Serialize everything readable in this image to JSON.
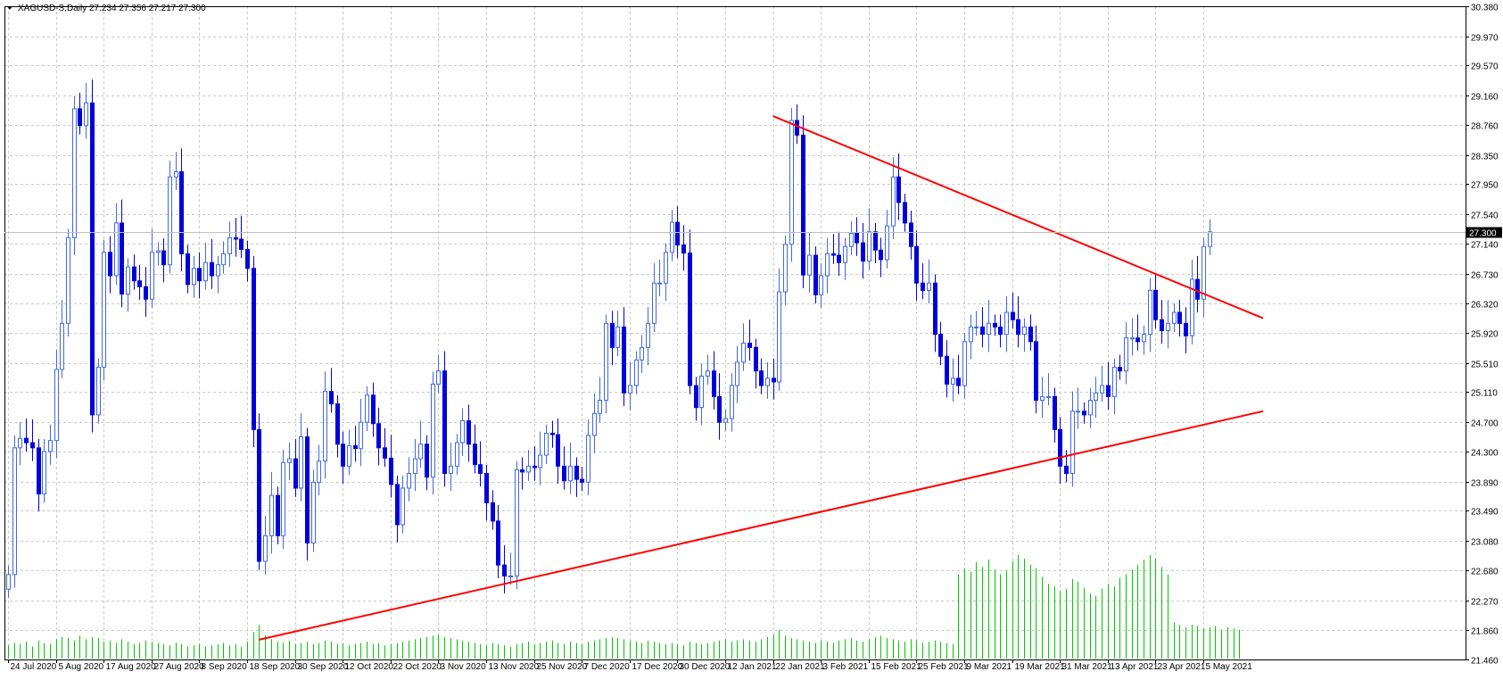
{
  "header": {
    "symbol": "XAGUSD-S,Daily",
    "ohlc": "27.234 27.356 27.217 27.300"
  },
  "colors": {
    "bull": "#4169e1",
    "bear": "#0000dd",
    "volume": "#00c800",
    "trendline": "#ff0000",
    "grid": "#c8c8c8",
    "axis": "#000000",
    "price_line": "#c0c0c0",
    "price_tag_bg": "#000000",
    "price_tag_text": "#ffffff"
  },
  "chart_data": {
    "type": "candlestick",
    "title": "",
    "xlabel": "",
    "ylabel": "",
    "ylim": [
      21.46,
      30.38
    ],
    "grid": true,
    "last_price": "27.300",
    "y_ticks": [
      "30.380",
      "29.970",
      "29.570",
      "29.160",
      "28.760",
      "28.350",
      "27.950",
      "27.540",
      "27.140",
      "26.730",
      "26.320",
      "25.920",
      "25.510",
      "25.110",
      "24.700",
      "24.300",
      "23.890",
      "23.490",
      "23.080",
      "22.680",
      "22.270",
      "21.860",
      "21.460"
    ],
    "x_ticks": [
      {
        "label": "24 Jul 2020",
        "index": 0
      },
      {
        "label": "5 Aug 2020",
        "index": 8
      },
      {
        "label": "17 Aug 2020",
        "index": 16
      },
      {
        "label": "27 Aug 2020",
        "index": 24
      },
      {
        "label": "8 Sep 2020",
        "index": 32
      },
      {
        "label": "18 Sep 2020",
        "index": 40
      },
      {
        "label": "30 Sep 2020",
        "index": 48
      },
      {
        "label": "12 Oct 2020",
        "index": 56
      },
      {
        "label": "22 Oct 2020",
        "index": 64
      },
      {
        "label": "3 Nov 2020",
        "index": 72
      },
      {
        "label": "13 Nov 2020",
        "index": 80
      },
      {
        "label": "25 Nov 2020",
        "index": 88
      },
      {
        "label": "7 Dec 2020",
        "index": 96
      },
      {
        "label": "17 Dec 2020",
        "index": 104
      },
      {
        "label": "30 Dec 2020",
        "index": 112
      },
      {
        "label": "12 Jan 2021",
        "index": 120
      },
      {
        "label": "22 Jan 2021",
        "index": 128
      },
      {
        "label": "3 Feb 2021",
        "index": 136
      },
      {
        "label": "15 Feb 2021",
        "index": 144
      },
      {
        "label": "25 Feb 2021",
        "index": 152
      },
      {
        "label": "9 Mar 2021",
        "index": 160
      },
      {
        "label": "19 Mar 2021",
        "index": 168
      },
      {
        "label": "31 Mar 2021",
        "index": 176
      },
      {
        "label": "13 Apr 2021",
        "index": 184
      },
      {
        "label": "23 Apr 2021",
        "index": 192
      },
      {
        "label": "5 May 2021",
        "index": 200
      }
    ],
    "trendlines": [
      {
        "name": "support",
        "from": {
          "index": 42,
          "price": 21.73
        },
        "to": {
          "index": 210,
          "price": 24.85
        }
      },
      {
        "name": "resistance",
        "from": {
          "index": 128,
          "price": 28.88
        },
        "to": {
          "index": 210,
          "price": 26.12
        }
      }
    ],
    "closes": [
      22.62,
      24.35,
      24.48,
      24.42,
      24.35,
      23.72,
      24.3,
      24.45,
      25.42,
      26.05,
      27.22,
      28.98,
      28.75,
      29.06,
      24.8,
      25.45,
      27.02,
      26.7,
      27.42,
      26.45,
      26.82,
      26.63,
      26.55,
      26.38,
      27.02,
      27.04,
      26.85,
      28.05,
      28.12,
      27.0,
      26.58,
      26.8,
      26.63,
      26.88,
      26.7,
      26.85,
      27.0,
      27.22,
      27.2,
      27.06,
      26.8,
      24.6,
      22.8,
      23.15,
      23.7,
      23.15,
      24.15,
      24.2,
      23.8,
      24.5,
      23.05,
      23.88,
      24.17,
      25.12,
      24.95,
      24.4,
      24.1,
      24.38,
      24.34,
      24.7,
      25.07,
      24.68,
      24.35,
      24.21,
      23.85,
      23.3,
      23.8,
      24.0,
      24.2,
      24.4,
      23.95,
      25.22,
      25.4,
      24.0,
      24.1,
      24.42,
      24.72,
      24.4,
      24.12,
      24.0,
      23.6,
      23.35,
      22.75,
      22.6,
      22.6,
      24.05,
      24.02,
      24.1,
      24.08,
      24.25,
      24.55,
      24.53,
      24.1,
      23.9,
      24.1,
      23.92,
      23.88,
      24.52,
      24.82,
      25.0,
      26.05,
      25.72,
      26.0,
      25.1,
      25.2,
      25.55,
      25.72,
      26.05,
      26.6,
      26.6,
      27.02,
      27.43,
      27.12,
      27.01,
      25.2,
      24.9,
      25.33,
      25.4,
      25.05,
      24.7,
      24.75,
      25.2,
      25.52,
      25.78,
      25.72,
      25.4,
      25.2,
      25.3,
      25.25,
      26.48,
      27.13,
      28.82,
      28.62,
      26.71,
      26.98,
      26.44,
      26.7,
      27.0,
      26.98,
      26.88,
      27.1,
      27.28,
      27.15,
      26.9,
      27.3,
      27.05,
      26.92,
      27.38,
      28.05,
      27.7,
      27.42,
      27.1,
      26.6,
      26.5,
      26.6,
      25.9,
      25.6,
      25.22,
      25.3,
      25.2,
      25.8,
      26.0,
      26.0,
      25.9,
      26.05,
      26.0,
      25.9,
      26.2,
      26.1,
      25.9,
      26.0,
      25.8,
      25.0,
      25.05,
      25.05,
      24.6,
      24.1,
      24.0,
      24.85,
      24.85,
      24.8,
      25.0,
      25.1,
      25.2,
      25.05,
      25.45,
      25.4,
      25.85,
      25.85,
      25.8,
      25.9,
      26.5,
      26.1,
      25.95,
      26.05,
      26.2,
      26.05,
      25.88,
      26.65,
      26.38,
      27.1,
      27.3
    ],
    "volume": [
      1.1,
      1.3,
      1.2,
      1.4,
      1.0,
      1.5,
      1.3,
      1.2,
      1.6,
      1.8,
      1.7,
      1.5,
      1.9,
      1.6,
      1.8,
      1.7,
      1.4,
      1.5,
      1.3,
      1.6,
      1.4,
      1.2,
      1.3,
      1.5,
      1.4,
      1.3,
      1.2,
      1.1,
      1.3,
      1.2,
      1.0,
      1.1,
      1.2,
      1.0,
      1.1,
      1.2,
      1.3,
      1.1,
      1.2,
      1.0,
      1.4,
      2.2,
      2.8,
      1.9,
      1.6,
      1.4,
      1.3,
      1.5,
      1.2,
      1.3,
      1.4,
      1.2,
      1.3,
      1.5,
      1.4,
      1.2,
      1.3,
      1.1,
      1.2,
      1.3,
      1.4,
      1.2,
      1.3,
      1.1,
      1.2,
      1.3,
      1.4,
      1.5,
      1.6,
      1.7,
      1.8,
      1.9,
      2.0,
      1.8,
      1.7,
      1.6,
      1.5,
      1.4,
      1.3,
      1.2,
      1.1,
      1.3,
      1.2,
      1.1,
      1.0,
      1.2,
      1.3,
      1.4,
      1.2,
      1.3,
      1.4,
      1.5,
      1.3,
      1.2,
      1.4,
      1.3,
      1.2,
      1.4,
      1.5,
      1.6,
      1.7,
      1.8,
      1.7,
      1.6,
      1.5,
      1.4,
      1.3,
      1.5,
      1.4,
      1.3,
      1.2,
      1.3,
      1.2,
      1.1,
      1.4,
      1.3,
      1.2,
      1.3,
      1.4,
      1.5,
      1.6,
      1.4,
      1.5,
      1.6,
      1.5,
      1.4,
      1.6,
      1.8,
      2.0,
      2.4,
      1.9,
      1.7,
      1.6,
      1.5,
      1.4,
      1.3,
      1.5,
      1.4,
      1.3,
      1.5,
      1.6,
      1.7,
      1.5,
      1.4,
      1.6,
      1.8,
      1.9,
      1.7,
      1.6,
      1.5,
      1.4,
      1.6,
      1.5,
      1.3,
      1.4,
      1.5,
      1.4,
      1.3,
      1.2,
      7.0,
      7.5,
      7.2,
      8.0,
      7.6,
      8.2,
      7.4,
      7.0,
      7.3,
      8.1,
      8.6,
      8.3,
      7.8,
      7.5,
      6.8,
      6.2,
      6.0,
      5.6,
      5.8,
      6.6,
      6.4,
      5.9,
      5.4,
      5.2,
      5.8,
      6.2,
      6.0,
      6.7,
      7.0,
      7.4,
      7.8,
      8.2,
      8.6,
      8.3,
      7.6,
      7.0,
      3.0,
      2.8,
      2.6,
      2.8,
      2.7,
      2.5,
      2.6,
      2.7,
      2.4,
      2.6,
      2.5,
      2.4
    ]
  }
}
